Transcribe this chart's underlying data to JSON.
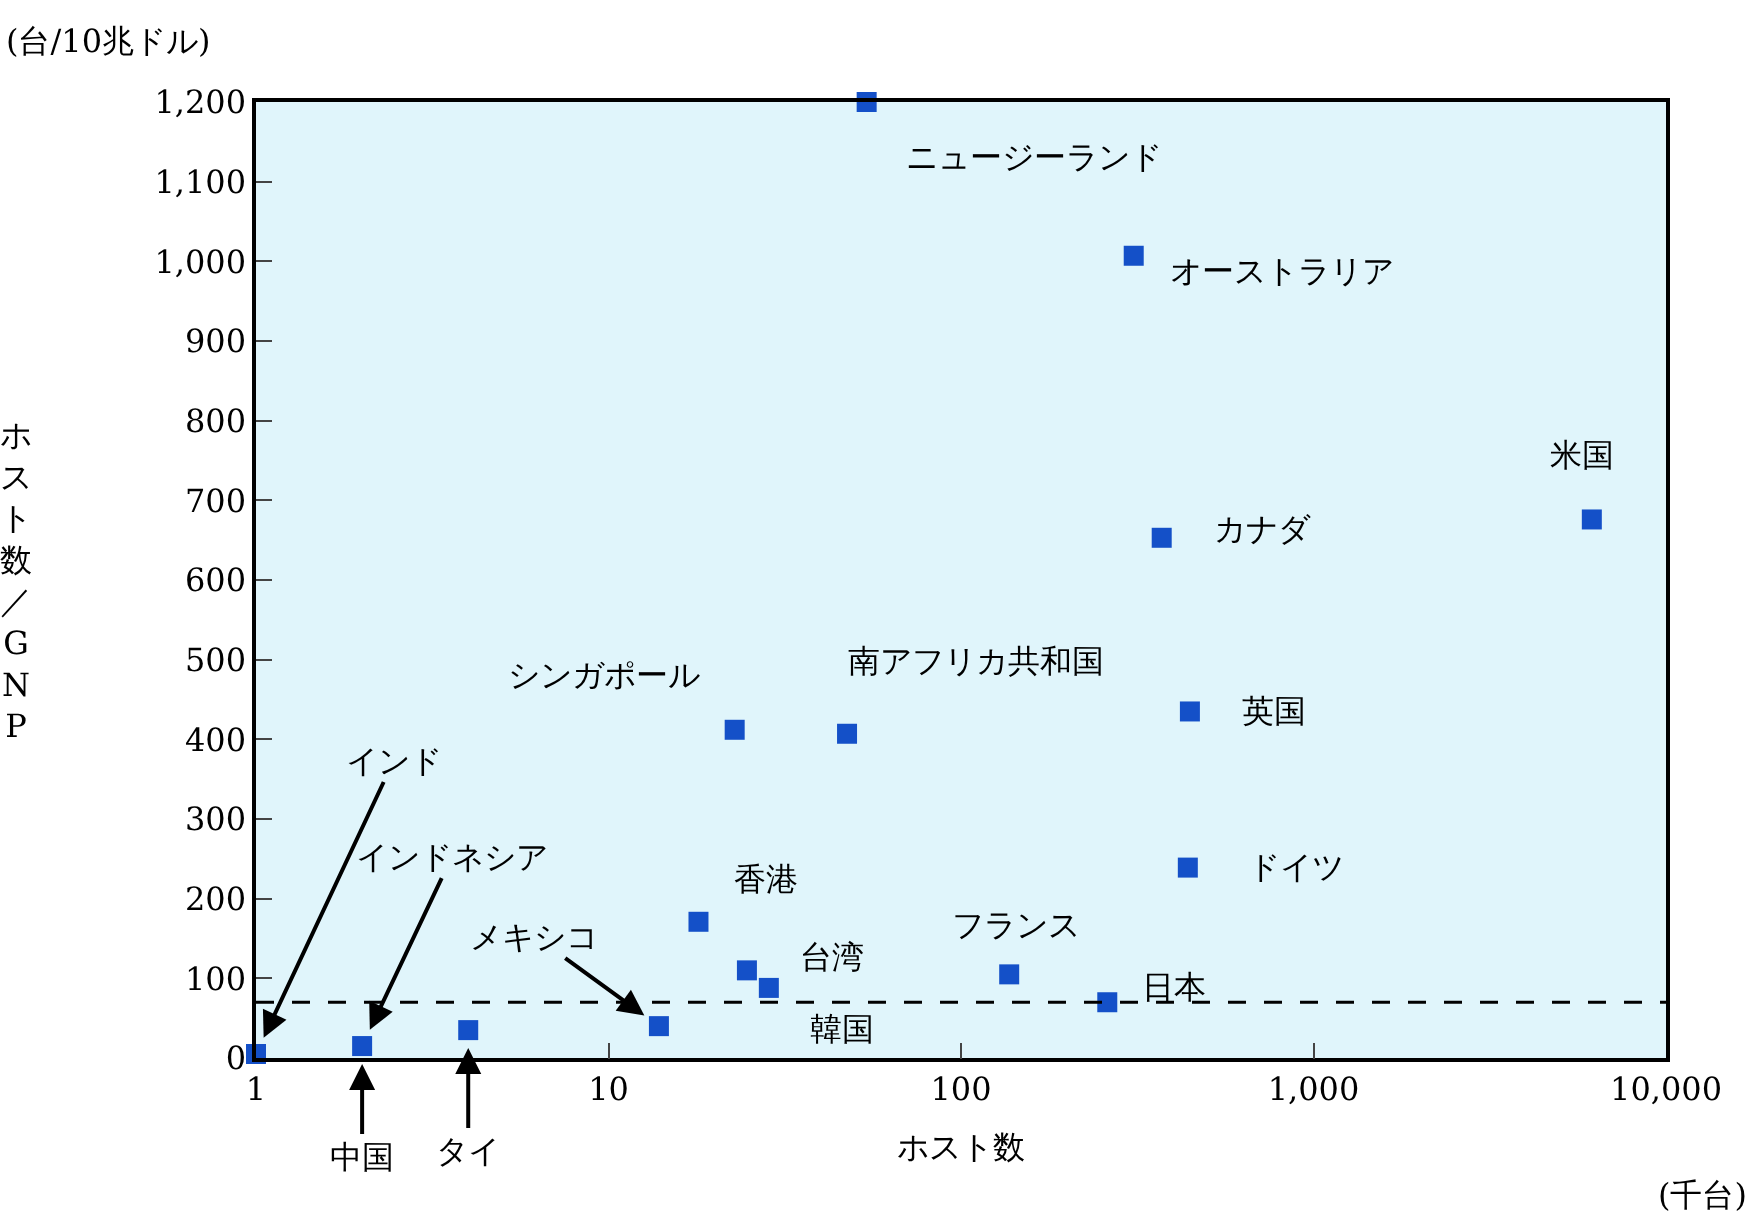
{
  "chart_data": {
    "type": "scatter",
    "xlabel": "ホスト数",
    "ylabel": "ホスト数／GNP",
    "x": [
      1,
      2.0,
      4.0,
      13.9,
      18,
      22.8,
      24.7,
      28.5,
      47.5,
      54,
      137,
      260,
      309,
      371,
      446,
      440,
      6160
    ],
    "series": [
      {
        "color": "#1450c8",
        "values": [
          5,
          15,
          35,
          40,
          171,
          412,
          110,
          88,
          407,
          1200,
          105,
          70,
          1007,
          653,
          435,
          239,
          676
        ]
      }
    ],
    "log": "x",
    "marker": "square",
    "grid": false,
    "xlim": [
      1,
      10000
    ],
    "xticks": [
      1,
      10,
      100,
      {
        "value": 1000,
        "label": "1,000"
      },
      {
        "value": 10000,
        "label": "10,000"
      }
    ],
    "ylim": [
      0,
      1200
    ],
    "yticks": [
      0,
      100,
      200,
      300,
      400,
      500,
      600,
      700,
      800,
      900,
      {
        "value": 1000,
        "label": "1,000"
      },
      {
        "value": 1100,
        "label": "1,100"
      },
      {
        "value": 1200,
        "label": "1,200"
      }
    ],
    "ref_lines": [
      {
        "axis": "y",
        "value": 70,
        "line_style": "dashed",
        "color": "#000000"
      }
    ],
    "annotations": [
      {
        "text": "インド",
        "x": 1,
        "y": 5
      },
      {
        "text": "インドネシア",
        "x": 2.0,
        "y": 15
      },
      {
        "text": "中国",
        "x": 2.0,
        "y": 15
      },
      {
        "text": "タイ",
        "x": 4.0,
        "y": 35
      },
      {
        "text": "メキシコ",
        "x": 13.9,
        "y": 40
      },
      {
        "text": "香港",
        "x": 18,
        "y": 171
      },
      {
        "text": "シンガポール",
        "x": 22.8,
        "y": 412
      },
      {
        "text": "台湾",
        "x": 24.7,
        "y": 110
      },
      {
        "text": "韓国",
        "x": 28.5,
        "y": 88
      },
      {
        "text": "南アフリカ共和国",
        "x": 47.5,
        "y": 407
      },
      {
        "text": "ニュージーランド",
        "x": 54,
        "y": 1200
      },
      {
        "text": "フランス",
        "x": 137,
        "y": 105
      },
      {
        "text": "日本",
        "x": 260,
        "y": 70
      },
      {
        "text": "オーストラリア",
        "x": 309,
        "y": 1007
      },
      {
        "text": "カナダ",
        "x": 371,
        "y": 653
      },
      {
        "text": "英国",
        "x": 446,
        "y": 435
      },
      {
        "text": "ドイツ",
        "x": 440,
        "y": 239
      },
      {
        "text": "米国",
        "x": 6160,
        "y": 676
      },
      "(台/10兆ドル)",
      "(千台)"
    ]
  }
}
